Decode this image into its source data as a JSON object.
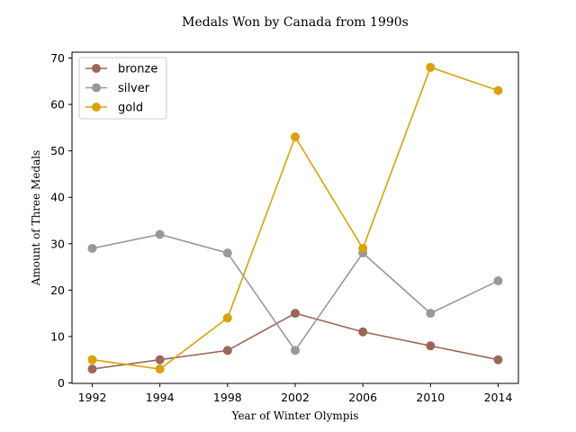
{
  "chart_data": {
    "type": "line",
    "title": "Medals Won by Canada from 1990s",
    "xlabel": "Year of Winter Olympis",
    "ylabel": "Amount of Three Medals",
    "categories": [
      "1992",
      "1994",
      "1998",
      "2002",
      "2006",
      "2010",
      "2014"
    ],
    "ylim": [
      0,
      70
    ],
    "yticks": [
      0,
      10,
      20,
      30,
      40,
      50,
      60,
      70
    ],
    "grid": false,
    "legend_position": "upper-left",
    "series": [
      {
        "name": "bronze",
        "color": "#9c6757",
        "values": [
          3,
          5,
          7,
          15,
          11,
          8,
          5
        ]
      },
      {
        "name": "silver",
        "color": "#999999",
        "values": [
          29,
          32,
          28,
          7,
          28,
          15,
          22
        ]
      },
      {
        "name": "gold",
        "color": "#d9a20b",
        "values": [
          5,
          3,
          14,
          53,
          29,
          68,
          63
        ]
      }
    ]
  }
}
